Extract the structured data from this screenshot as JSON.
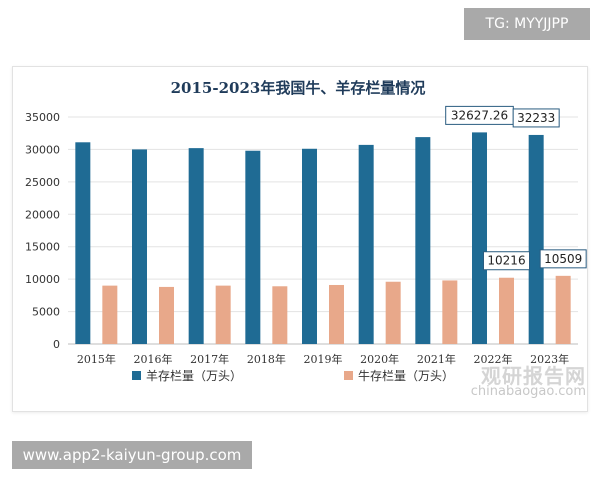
{
  "overlay": {
    "tg_label": "TG: MYYJJPP",
    "watermark_cn": "观研报告网",
    "watermark_url": "chinabaogao.com",
    "footer_url": "www.app2-kaiyun-group.com"
  },
  "chart_data": {
    "type": "bar",
    "title": "2015-2023年我国牛、羊存栏量情况",
    "categories": [
      "2015年",
      "2016年",
      "2017年",
      "2018年",
      "2019年",
      "2020年",
      "2021年",
      "2022年",
      "2023年"
    ],
    "ylim": [
      0,
      35000
    ],
    "yticks": [
      0,
      5000,
      10000,
      15000,
      20000,
      25000,
      30000,
      35000
    ],
    "grid": true,
    "legend_position": "bottom-left",
    "series": [
      {
        "name": "羊存栏量（万头）",
        "color": "#1f6b94",
        "values": [
          31100,
          30000,
          30200,
          29800,
          30100,
          30700,
          31900,
          32627.26,
          32233
        ]
      },
      {
        "name": "牛存栏量（万头）",
        "color": "#e8a88a",
        "values": [
          9000,
          8800,
          9000,
          8900,
          9100,
          9600,
          9800,
          10216,
          10509
        ]
      }
    ],
    "annotations": [
      {
        "series": 0,
        "index": 7,
        "text": "32627.26"
      },
      {
        "series": 0,
        "index": 8,
        "text": "32233"
      },
      {
        "series": 1,
        "index": 7,
        "text": "10216"
      },
      {
        "series": 1,
        "index": 8,
        "text": "10509"
      }
    ]
  }
}
